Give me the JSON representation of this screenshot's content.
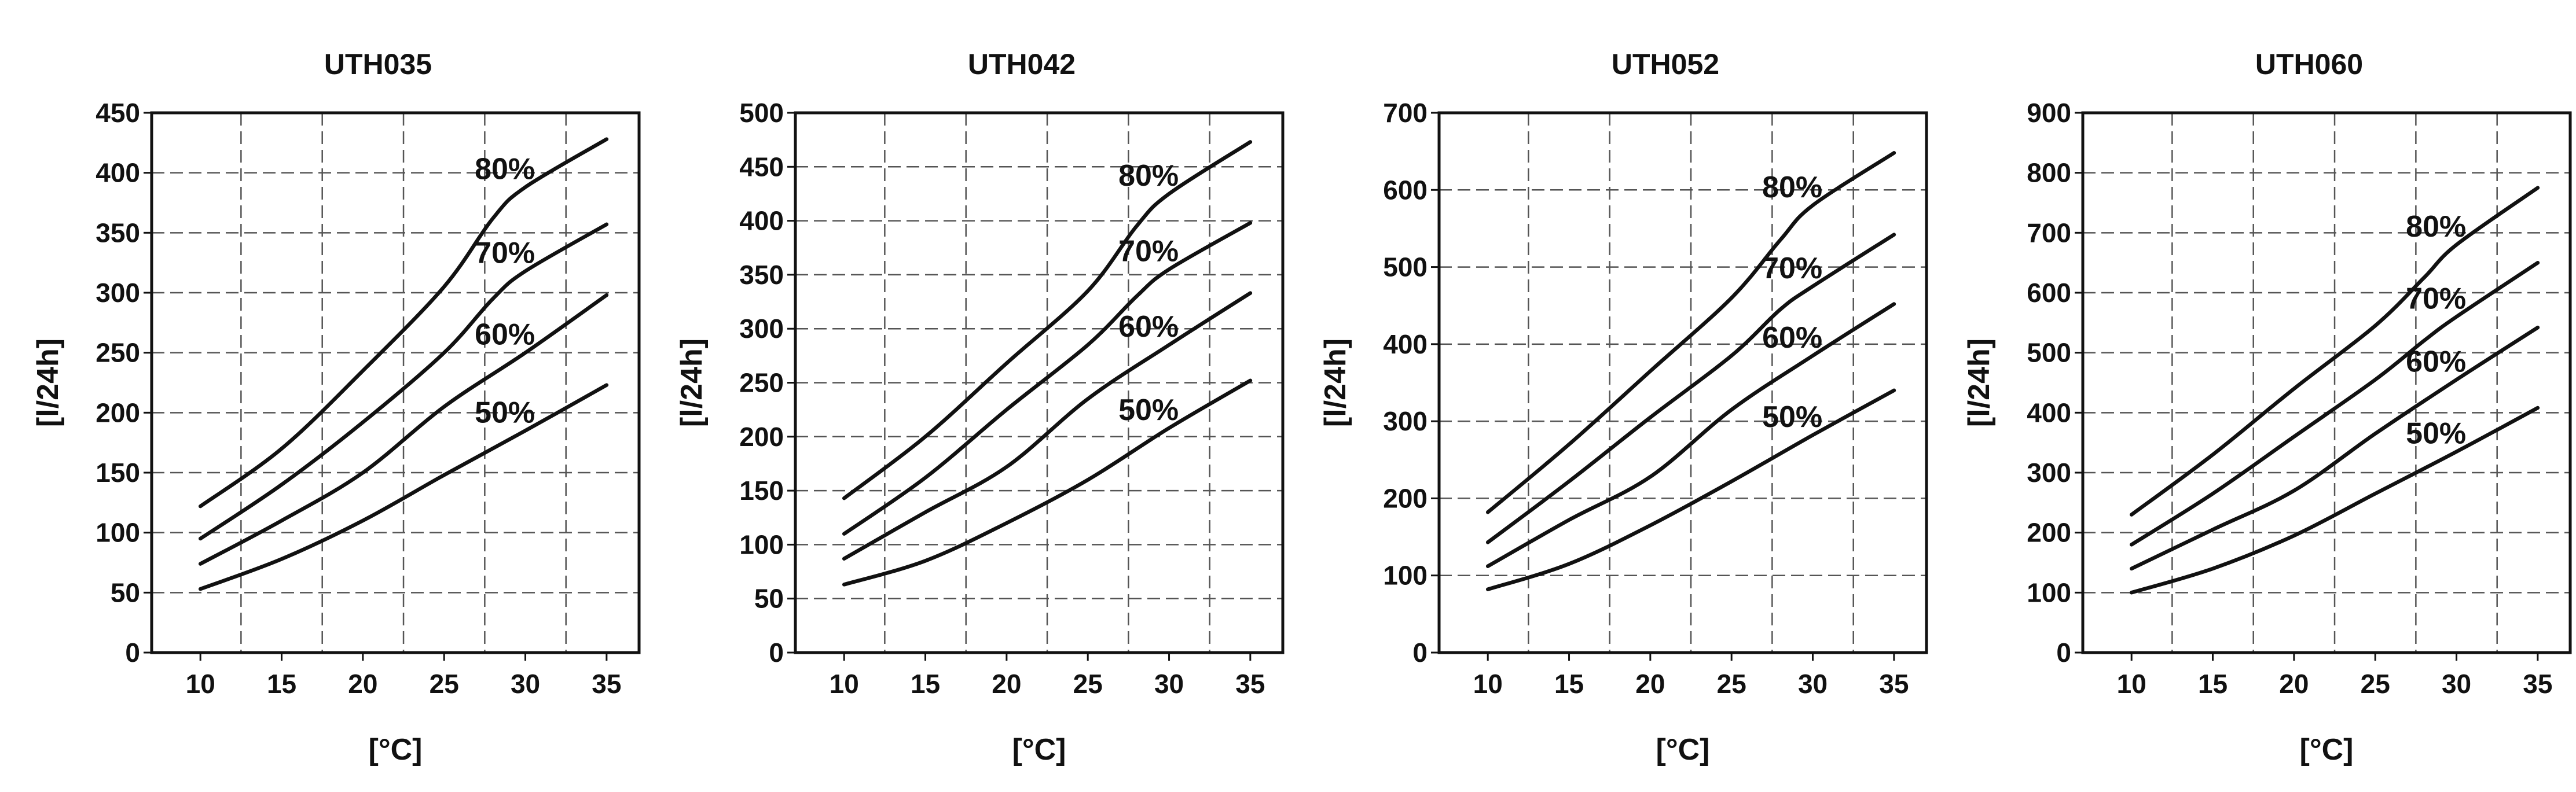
{
  "chart_data": [
    {
      "type": "line",
      "title": "UTH035",
      "xlabel": "[°C]",
      "ylabel": "[l/24h]",
      "xlim": [
        7,
        37
      ],
      "ylim": [
        0,
        450
      ],
      "xticks": [
        10,
        15,
        20,
        25,
        30,
        35
      ],
      "yticks": [
        0,
        50,
        100,
        150,
        200,
        250,
        300,
        350,
        400,
        450
      ],
      "grid": true,
      "series": [
        {
          "name": "80%",
          "x": [
            10,
            15,
            20,
            25,
            28,
            30,
            35
          ],
          "values": [
            122,
            170,
            235,
            305,
            362,
            388,
            428
          ]
        },
        {
          "name": "70%",
          "x": [
            10,
            15,
            20,
            25,
            28,
            30,
            35
          ],
          "values": [
            95,
            140,
            192,
            250,
            295,
            318,
            357
          ]
        },
        {
          "name": "60%",
          "x": [
            10,
            15,
            20,
            25,
            30,
            35
          ],
          "values": [
            74,
            110,
            150,
            205,
            250,
            298
          ]
        },
        {
          "name": "50%",
          "x": [
            10,
            15,
            20,
            25,
            30,
            35
          ],
          "values": [
            53,
            78,
            110,
            148,
            185,
            223
          ]
        }
      ]
    },
    {
      "type": "line",
      "title": "UTH042",
      "xlabel": "[°C]",
      "ylabel": "[l/24h]",
      "xlim": [
        7,
        37
      ],
      "ylim": [
        0,
        500
      ],
      "xticks": [
        10,
        15,
        20,
        25,
        30,
        35
      ],
      "yticks": [
        0,
        50,
        100,
        150,
        200,
        250,
        300,
        350,
        400,
        450,
        500
      ],
      "grid": true,
      "series": [
        {
          "name": "80%",
          "x": [
            10,
            15,
            20,
            25,
            28,
            30,
            35
          ],
          "values": [
            143,
            200,
            268,
            335,
            395,
            425,
            473
          ]
        },
        {
          "name": "70%",
          "x": [
            10,
            15,
            20,
            25,
            28,
            30,
            35
          ],
          "values": [
            110,
            162,
            225,
            285,
            330,
            355,
            398
          ]
        },
        {
          "name": "60%",
          "x": [
            10,
            15,
            20,
            25,
            30,
            35
          ],
          "values": [
            87,
            130,
            172,
            235,
            285,
            333
          ]
        },
        {
          "name": "50%",
          "x": [
            10,
            15,
            20,
            25,
            30,
            35
          ],
          "values": [
            63,
            85,
            120,
            160,
            208,
            252
          ]
        }
      ]
    },
    {
      "type": "line",
      "title": "UTH052",
      "xlabel": "[°C]",
      "ylabel": "[l/24h]",
      "xlim": [
        7,
        37
      ],
      "ylim": [
        0,
        700
      ],
      "xticks": [
        10,
        15,
        20,
        25,
        30,
        35
      ],
      "yticks": [
        0,
        100,
        200,
        300,
        400,
        500,
        600,
        700
      ],
      "grid": true,
      "series": [
        {
          "name": "80%",
          "x": [
            10,
            15,
            20,
            25,
            28,
            30,
            35
          ],
          "values": [
            182,
            270,
            365,
            460,
            535,
            580,
            648
          ]
        },
        {
          "name": "70%",
          "x": [
            10,
            15,
            20,
            25,
            28,
            30,
            35
          ],
          "values": [
            143,
            222,
            305,
            385,
            445,
            475,
            542
          ]
        },
        {
          "name": "60%",
          "x": [
            10,
            15,
            20,
            25,
            30,
            35
          ],
          "values": [
            112,
            172,
            228,
            315,
            385,
            452
          ]
        },
        {
          "name": "50%",
          "x": [
            10,
            15,
            20,
            25,
            30,
            35
          ],
          "values": [
            82,
            115,
            165,
            222,
            282,
            340
          ]
        }
      ]
    },
    {
      "type": "line",
      "title": "UTH060",
      "xlabel": "[°C]",
      "ylabel": "[l/24h]",
      "xlim": [
        7,
        37
      ],
      "ylim": [
        0,
        900
      ],
      "xticks": [
        10,
        15,
        20,
        25,
        30,
        35
      ],
      "yticks": [
        0,
        100,
        200,
        300,
        400,
        500,
        600,
        700,
        800,
        900
      ],
      "grid": true,
      "series": [
        {
          "name": "80%",
          "x": [
            10,
            15,
            20,
            25,
            28,
            30,
            35
          ],
          "values": [
            230,
            330,
            440,
            545,
            625,
            680,
            775
          ]
        },
        {
          "name": "70%",
          "x": [
            10,
            15,
            20,
            25,
            28,
            30,
            35
          ],
          "values": [
            180,
            265,
            360,
            455,
            520,
            560,
            650
          ]
        },
        {
          "name": "60%",
          "x": [
            10,
            15,
            20,
            25,
            30,
            35
          ],
          "values": [
            140,
            205,
            270,
            365,
            455,
            542
          ]
        },
        {
          "name": "50%",
          "x": [
            10,
            15,
            20,
            25,
            30,
            35
          ],
          "values": [
            100,
            140,
            195,
            265,
            335,
            408
          ]
        }
      ]
    }
  ]
}
